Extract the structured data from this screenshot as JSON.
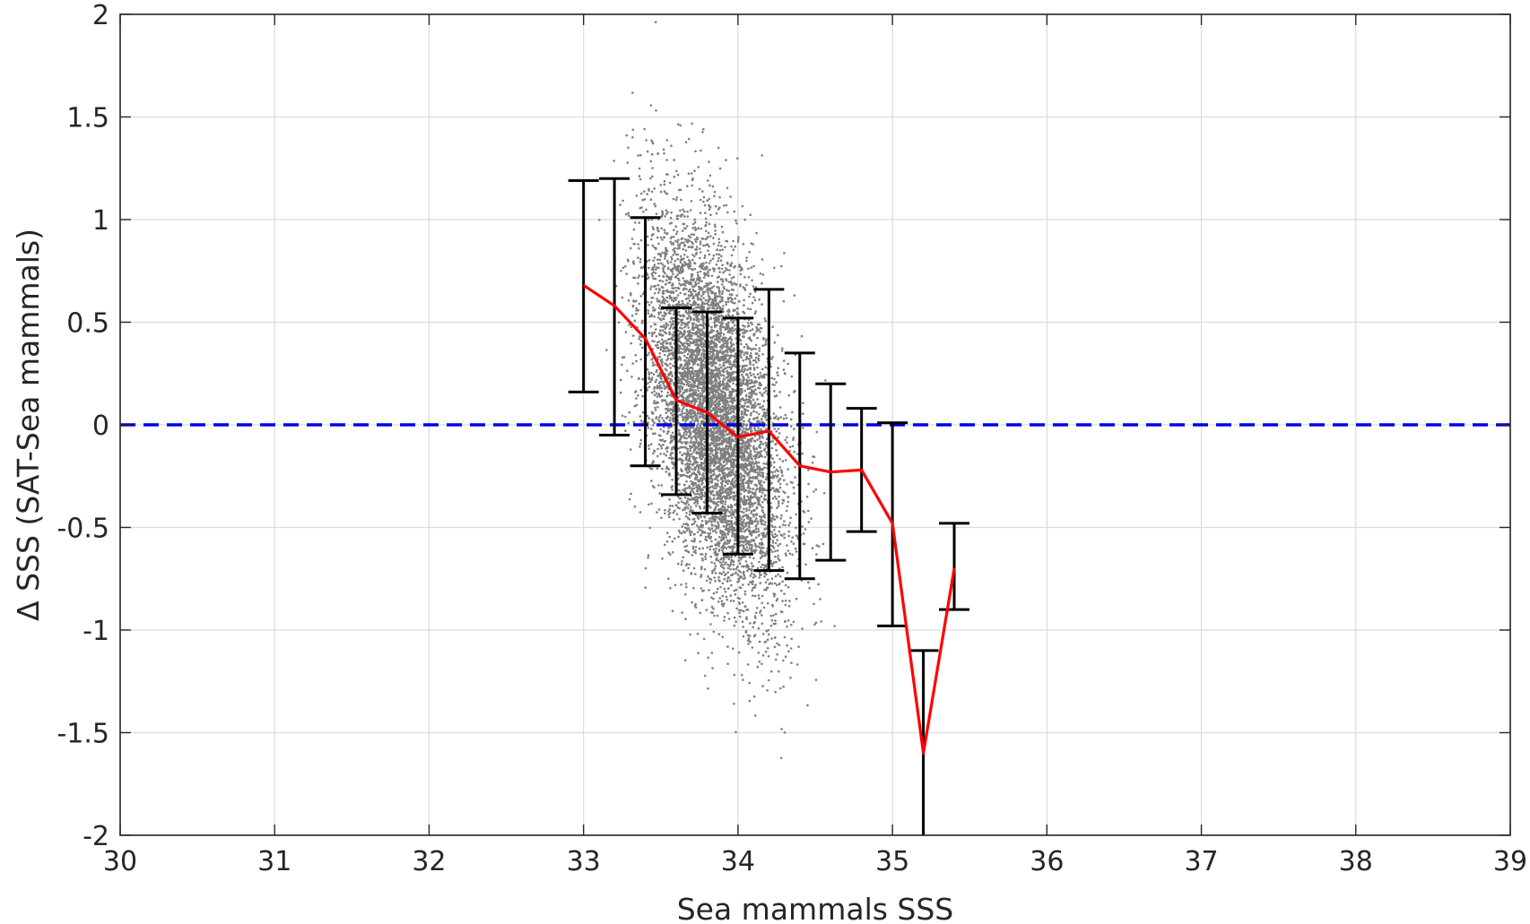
{
  "chart_data": {
    "type": "scatter",
    "xlabel": "Sea mammals SSS",
    "ylabel": "Δ SSS (SAT-Sea mammals)",
    "xlim": [
      30,
      39
    ],
    "ylim": [
      -2,
      2
    ],
    "grid": true,
    "x_ticks": [
      30,
      31,
      32,
      33,
      34,
      35,
      36,
      37,
      38,
      39
    ],
    "y_ticks": [
      -2,
      -1.5,
      -1,
      -0.5,
      0,
      0.5,
      1,
      1.5,
      2
    ],
    "x_tick_labels": [
      "30",
      "31",
      "32",
      "33",
      "34",
      "35",
      "36",
      "37",
      "38",
      "39"
    ],
    "y_tick_labels": [
      "-2",
      "-1.5",
      "-1",
      "-0.5",
      "0",
      "0.5",
      "1",
      "1.5",
      "2"
    ],
    "reference_line": {
      "y": 0,
      "style": "dashed",
      "color": "#0000e6"
    },
    "scatter": {
      "color": "#7f7f7f",
      "description_points": "dense cloud of individual matchups centred near x=33.85, y=0.05",
      "center_x": 33.85,
      "center_y": 0.05
    },
    "binned_mean": {
      "color": "#ff0000",
      "x": [
        33.0,
        33.2,
        33.4,
        33.6,
        33.8,
        34.0,
        34.2,
        34.4,
        34.6,
        34.8,
        35.0,
        35.2,
        35.4
      ],
      "y": [
        0.68,
        0.58,
        0.42,
        0.12,
        0.06,
        -0.06,
        -0.03,
        -0.2,
        -0.23,
        -0.22,
        -0.48,
        -1.6,
        -0.7
      ]
    },
    "error_bars": {
      "color": "#000000",
      "x": [
        33.0,
        33.2,
        33.4,
        33.6,
        33.8,
        34.0,
        34.2,
        34.4,
        34.6,
        34.8,
        35.0,
        35.2,
        35.4
      ],
      "lower": [
        0.16,
        -0.05,
        -0.2,
        -0.34,
        -0.43,
        -0.63,
        -0.71,
        -0.75,
        -0.66,
        -0.52,
        -0.98,
        -2.0,
        -0.9
      ],
      "upper": [
        1.19,
        1.2,
        1.01,
        0.57,
        0.55,
        0.52,
        0.66,
        0.35,
        0.2,
        0.08,
        0.01,
        -1.1,
        -0.48
      ]
    }
  }
}
